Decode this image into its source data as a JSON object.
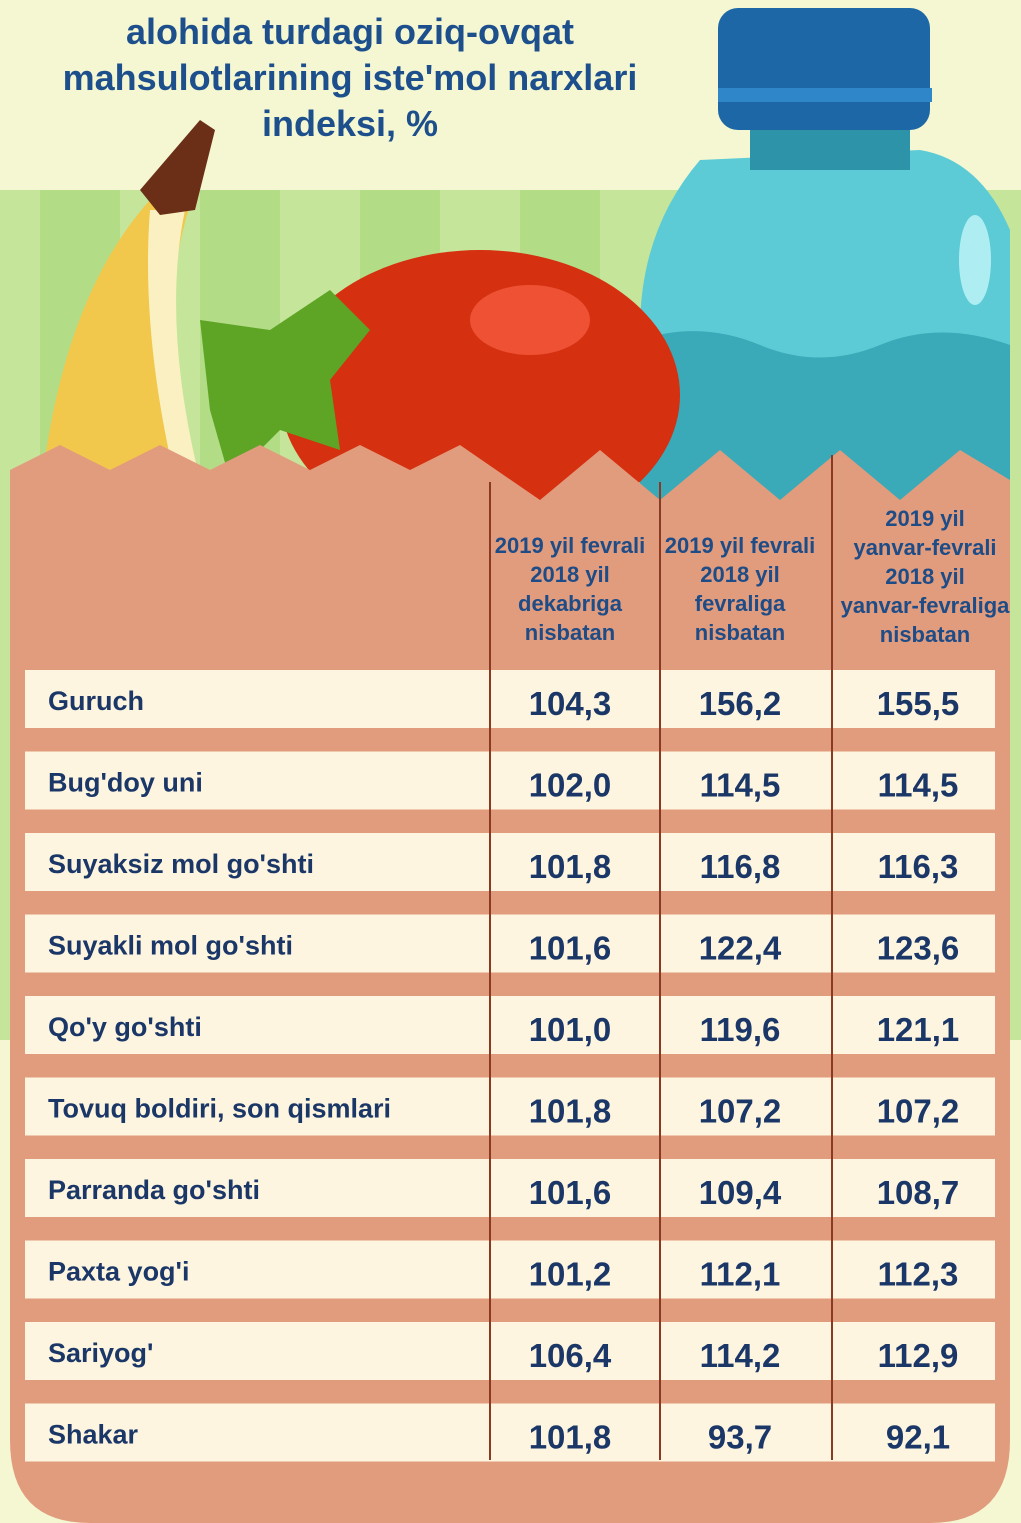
{
  "header": {
    "title_lines": [
      "alohida turdagi oziq-ovqat",
      "mahsulotlarining iste'mol narxlari",
      "indeksi, %"
    ]
  },
  "table": {
    "columns": [
      [
        "2019 yil fevrali",
        "2018 yil",
        "dekabriga",
        "nisbatan"
      ],
      [
        "2019 yil fevrali",
        "2018 yil",
        "fevraliga",
        "nisbatan"
      ],
      [
        "2019 yil",
        "yanvar-fevrali",
        "2018 yil",
        "yanvar-fevraliga",
        "nisbatan"
      ]
    ],
    "rows": [
      [
        "Guruch",
        "104,3",
        "156,2",
        "155,5"
      ],
      [
        "Bug'doy uni",
        "102,0",
        "114,5",
        "114,5"
      ],
      [
        "Suyaksiz mol go'shti",
        "101,8",
        "116,8",
        "116,3"
      ],
      [
        "Suyakli mol go'shti",
        "101,6",
        "122,4",
        "123,6"
      ],
      [
        "Qo'y go'shti",
        "101,0",
        "119,6",
        "121,1"
      ],
      [
        "Tovuq boldiri, son qismlari",
        "101,8",
        "107,2",
        "107,2"
      ],
      [
        "Parranda go'shti",
        "101,6",
        "109,4",
        "108,7"
      ],
      [
        "Paxta yog'i",
        "101,2",
        "112,1",
        "112,3"
      ],
      [
        "Sariyog'",
        "106,4",
        "114,2",
        "112,9"
      ],
      [
        "Shakar",
        "101,8",
        "93,7",
        "92,1"
      ]
    ]
  }
}
